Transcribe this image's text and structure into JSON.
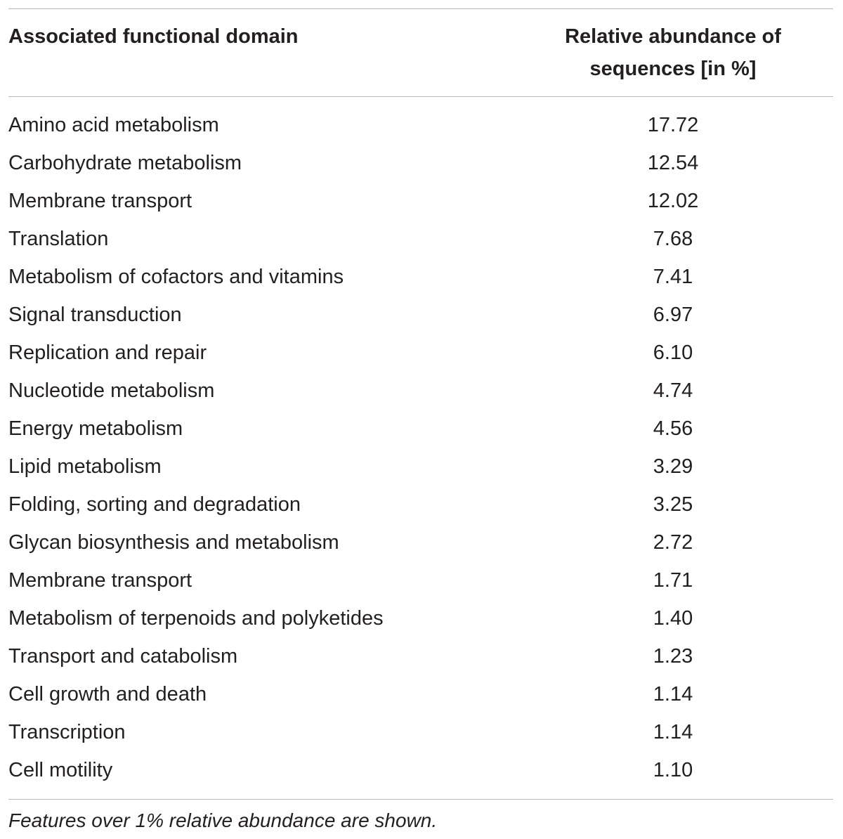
{
  "table": {
    "header": [
      "Associated functional domain",
      "Relative abundance of sequences [in %]"
    ],
    "rows": [
      [
        "Amino acid metabolism",
        "17.72"
      ],
      [
        "Carbohydrate metabolism",
        "12.54"
      ],
      [
        "Membrane transport",
        "12.02"
      ],
      [
        "Translation",
        "7.68"
      ],
      [
        "Metabolism of cofactors and vitamins",
        "7.41"
      ],
      [
        "Signal transduction",
        "6.97"
      ],
      [
        "Replication and repair",
        "6.10"
      ],
      [
        "Nucleotide metabolism",
        "4.74"
      ],
      [
        "Energy metabolism",
        "4.56"
      ],
      [
        "Lipid metabolism",
        "3.29"
      ],
      [
        "Folding, sorting and degradation",
        "3.25"
      ],
      [
        "Glycan biosynthesis and metabolism",
        "2.72"
      ],
      [
        "Membrane transport",
        "1.71"
      ],
      [
        "Metabolism of terpenoids and polyketides",
        "1.40"
      ],
      [
        "Transport and catabolism",
        "1.23"
      ],
      [
        "Cell growth and death",
        "1.14"
      ],
      [
        "Transcription",
        "1.14"
      ],
      [
        "Cell motility",
        "1.10"
      ]
    ],
    "footnote": "Features over 1% relative abundance are shown."
  }
}
